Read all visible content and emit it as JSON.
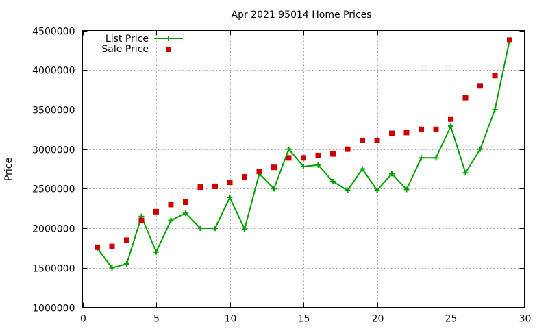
{
  "chart_data": {
    "type": "line",
    "title": "Apr 2021 95014 Home Prices",
    "xlabel": "",
    "ylabel": "Price",
    "xlim": [
      0,
      30
    ],
    "ylim": [
      1000000,
      4500000
    ],
    "xticks": [
      0,
      5,
      10,
      15,
      20,
      25,
      30
    ],
    "yticks": [
      1000000,
      1500000,
      2000000,
      2500000,
      3000000,
      3500000,
      4000000,
      4500000
    ],
    "grid": true,
    "legend_position": "top-left",
    "series": [
      {
        "name": "List Price",
        "style": "line-plus",
        "color": "#00a000",
        "x": [
          1,
          2,
          3,
          4,
          5,
          6,
          7,
          8,
          9,
          10,
          11,
          12,
          13,
          14,
          15,
          16,
          17,
          18,
          19,
          20,
          21,
          22,
          23,
          24,
          25,
          26,
          27,
          28,
          29
        ],
        "y": [
          1750000,
          1500000,
          1550000,
          2150000,
          1700000,
          2100000,
          2190000,
          2000000,
          2000000,
          2390000,
          1990000,
          2690000,
          2500000,
          3000000,
          2780000,
          2800000,
          2590000,
          2480000,
          2750000,
          2480000,
          2690000,
          2490000,
          2890000,
          2890000,
          3290000,
          2700000,
          3000000,
          3500000,
          4380000
        ]
      },
      {
        "name": "Sale Price",
        "style": "square-markers",
        "color": "#cc0000",
        "x": [
          1,
          2,
          3,
          4,
          5,
          6,
          7,
          8,
          9,
          10,
          11,
          12,
          13,
          14,
          15,
          16,
          17,
          18,
          19,
          20,
          21,
          22,
          23,
          24,
          25,
          26,
          27,
          28,
          29
        ],
        "y": [
          1760000,
          1770000,
          1850000,
          2100000,
          2210000,
          2300000,
          2330000,
          2520000,
          2530000,
          2580000,
          2650000,
          2720000,
          2770000,
          2890000,
          2890000,
          2920000,
          2940000,
          3000000,
          3110000,
          3110000,
          3200000,
          3210000,
          3250000,
          3250000,
          3380000,
          3650000,
          3800000,
          3930000,
          4380000
        ]
      }
    ]
  }
}
